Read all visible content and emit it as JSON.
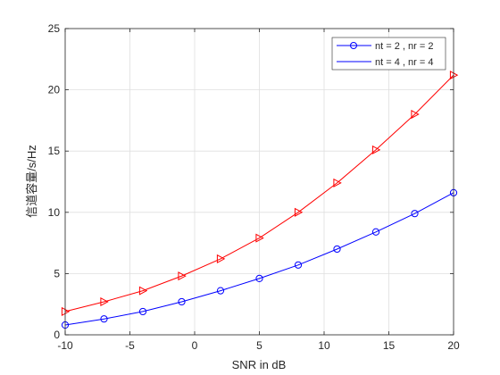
{
  "chart_data": {
    "type": "line",
    "title": "",
    "xlabel": "SNR in dB",
    "ylabel": "信道容量/s/Hz",
    "xlim": [
      -10,
      20
    ],
    "ylim": [
      0,
      25
    ],
    "xticks": [
      -10,
      -5,
      0,
      5,
      10,
      15,
      20
    ],
    "yticks": [
      0,
      5,
      10,
      15,
      20,
      25
    ],
    "xtick_labels": [
      "-10",
      "-5",
      "0",
      "5",
      "10",
      "15",
      "20"
    ],
    "ytick_labels": [
      "0",
      "5",
      "10",
      "15",
      "20",
      "25"
    ],
    "grid": true,
    "legend_position": "top-right",
    "x": [
      -10,
      -7,
      -4,
      -1,
      2,
      5,
      8,
      11,
      14,
      17,
      20
    ],
    "series": [
      {
        "name": "nt = 2 , nr = 2",
        "color": "#0000ff",
        "marker": "circle",
        "values": [
          0.8,
          1.3,
          1.9,
          2.7,
          3.6,
          4.6,
          5.7,
          7.0,
          8.4,
          9.9,
          11.6
        ]
      },
      {
        "name": "nt = 4 , nr = 4",
        "color": "#ff0000",
        "marker": "triangle-right",
        "values": [
          1.9,
          2.7,
          3.6,
          4.8,
          6.2,
          7.9,
          10.0,
          12.4,
          15.1,
          18.0,
          21.2
        ]
      }
    ]
  }
}
